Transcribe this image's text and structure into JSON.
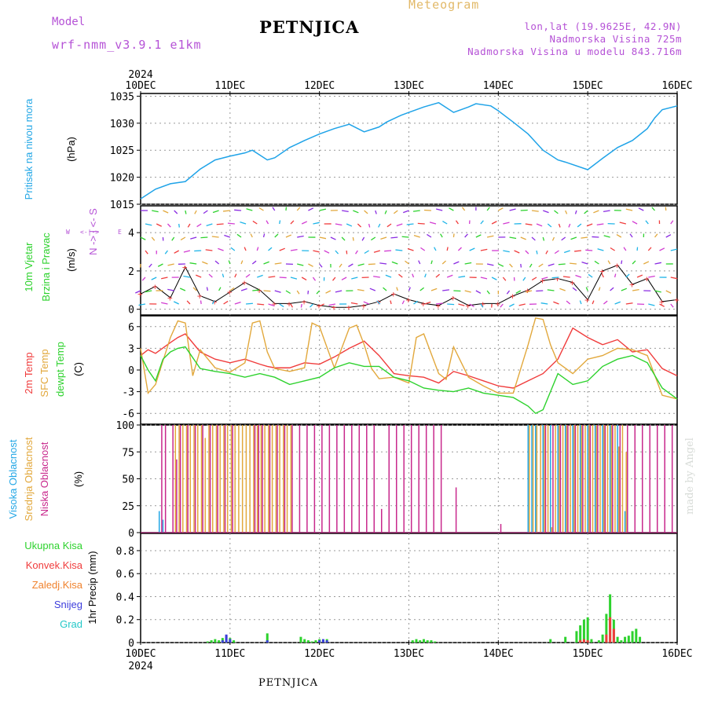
{
  "header": {
    "model_label": "Model",
    "model_name": "wrf-nmm_v3.9.1  e1km",
    "station": "PETNJICA",
    "product": "Meteogram",
    "coords": "lon,lat (19.9625E, 42.9N)",
    "altitude": "Nadmorska Visina 725m",
    "model_altitude": "Nadmorska Visina u modelu 843.716m"
  },
  "footer_station": "PETNJICA",
  "credit": "made by Angel",
  "year_label": "2024",
  "x_ticks": [
    "10DEC",
    "11DEC",
    "12DEC",
    "13DEC",
    "14DEC",
    "15DEC",
    "16DEC"
  ],
  "panels": {
    "pressure": {
      "title": "Pritisak na nivou mora",
      "unit": "(hPa)",
      "colors": {
        "title": "#23a7e6",
        "line": "#1fa3e8"
      },
      "ticks": [
        "1015",
        "1020",
        "1025",
        "1030",
        "1035"
      ]
    },
    "wind": {
      "title": "10m Vjetar",
      "subtitle": "Brzina i Pravac",
      "unit": "(m/s)",
      "compass": [
        "W",
        "<-|->",
        "E",
        "N",
        "->",
        "<-",
        "S"
      ],
      "colors": {
        "title": "#2dd22d",
        "compass": "#b552d6"
      },
      "ticks": [
        "0",
        "2",
        "4"
      ]
    },
    "temperature": {
      "labels": [
        "2m Temp",
        "SFC Temp",
        "dewpt Temp"
      ],
      "unit": "(C)",
      "colors": [
        "#f03c3c",
        "#e2a83c",
        "#2dd22d"
      ],
      "ticks": [
        "-6",
        "-3",
        "0",
        "3",
        "6"
      ]
    },
    "clouds": {
      "labels": [
        "Visoka Oblacnost",
        "Srednja Oblacnost",
        "Niska Oblacnost"
      ],
      "unit": "(%)",
      "colors": [
        "#23a7e6",
        "#e2a83c",
        "#c8288c"
      ],
      "ticks": [
        "0",
        "25",
        "50",
        "75",
        "100"
      ]
    },
    "precip": {
      "labels": [
        "Ukupna Kisa",
        "Konvek.Kisa",
        "Zaledj.Kisa",
        "Snijeg",
        "Grad"
      ],
      "unit": "1hr Precip (mm)",
      "colors": [
        "#2dd22d",
        "#f03c3c",
        "#f0822d",
        "#3c3cdc",
        "#23c8c8"
      ],
      "ticks": [
        "0",
        "0.2",
        "0.4",
        "0.6",
        "0.8"
      ]
    }
  },
  "chart_data": [
    {
      "type": "line",
      "title": "",
      "xlabel": "",
      "ylabel": "(hPa)",
      "ylim": [
        1015,
        1035.5
      ],
      "xlim": [
        0,
        144
      ],
      "series": [
        {
          "name": "Pritisak na nivou mora",
          "x": [
            0,
            4,
            8,
            12,
            16,
            20,
            24,
            28,
            30,
            34,
            36,
            40,
            44,
            48,
            52,
            56,
            60,
            64,
            66,
            70,
            72,
            76,
            80,
            84,
            88,
            90,
            94,
            96,
            100,
            104,
            108,
            112,
            114,
            120,
            124,
            128,
            132,
            136,
            138,
            140,
            144
          ],
          "y": [
            1016,
            1017.8,
            1018.8,
            1019.2,
            1021.5,
            1023.2,
            1023.9,
            1024.5,
            1025.0,
            1023.2,
            1023.6,
            1025.5,
            1026.8,
            1028.0,
            1029.0,
            1029.8,
            1028.4,
            1029.3,
            1030.2,
            1031.5,
            1032.0,
            1033.0,
            1033.8,
            1032.0,
            1033.0,
            1033.6,
            1033.2,
            1032.3,
            1030.2,
            1028.0,
            1025.0,
            1023.2,
            1022.8,
            1021.4,
            1023.5,
            1025.5,
            1026.8,
            1029.0,
            1031.0,
            1032.5,
            1033.2
          ]
        }
      ]
    },
    {
      "type": "scatter",
      "title": "",
      "xlabel": "",
      "ylabel": "(m/s)",
      "ylim": [
        -0.3,
        5.4
      ],
      "xlim": [
        0,
        144
      ],
      "series": [
        {
          "name": "Brzina",
          "x": [
            0,
            4,
            8,
            12,
            16,
            20,
            24,
            28,
            32,
            36,
            40,
            44,
            48,
            52,
            56,
            60,
            64,
            68,
            72,
            76,
            80,
            84,
            88,
            92,
            96,
            100,
            104,
            108,
            112,
            116,
            120,
            124,
            128,
            132,
            136,
            140,
            144
          ],
          "y": [
            0.8,
            1.2,
            0.6,
            2.2,
            0.7,
            0.4,
            0.9,
            1.4,
            1.0,
            0.3,
            0.3,
            0.4,
            0.2,
            0.1,
            0.1,
            0.2,
            0.4,
            0.8,
            0.5,
            0.3,
            0.2,
            0.6,
            0.2,
            0.3,
            0.3,
            0.7,
            1.0,
            1.5,
            1.6,
            1.4,
            0.5,
            2.0,
            2.3,
            1.3,
            1.6,
            0.4,
            0.5
          ]
        }
      ]
    },
    {
      "type": "line",
      "title": "",
      "xlabel": "",
      "ylabel": "(C)",
      "ylim": [
        -7.5,
        7.5
      ],
      "xlim": [
        0,
        144
      ],
      "series": [
        {
          "name": "2m Temp",
          "x": [
            0,
            2,
            4,
            8,
            10,
            12,
            16,
            20,
            24,
            28,
            32,
            34,
            36,
            40,
            44,
            48,
            52,
            56,
            60,
            64,
            68,
            72,
            76,
            80,
            84,
            88,
            92,
            96,
            100,
            104,
            108,
            112,
            116,
            120,
            124,
            128,
            132,
            136,
            140,
            144
          ],
          "y": [
            2.0,
            2.8,
            2.3,
            3.8,
            4.5,
            5.0,
            2.5,
            1.5,
            1.0,
            1.5,
            0.8,
            0.5,
            0.3,
            0.3,
            1.0,
            0.8,
            1.8,
            3.0,
            4.0,
            2.0,
            -0.5,
            -0.8,
            -1.0,
            -1.8,
            -0.2,
            -0.8,
            -1.5,
            -2.2,
            -2.5,
            -1.5,
            -0.5,
            1.5,
            5.8,
            4.5,
            3.5,
            4.2,
            2.5,
            2.8,
            0.2,
            -0.8
          ]
        },
        {
          "name": "SFC Temp",
          "x": [
            0,
            2,
            4,
            8,
            10,
            12,
            14,
            16,
            20,
            24,
            28,
            30,
            32,
            34,
            36,
            40,
            44,
            46,
            48,
            52,
            56,
            58,
            60,
            62,
            64,
            68,
            72,
            74,
            76,
            80,
            82,
            84,
            88,
            92,
            96,
            100,
            104,
            106,
            108,
            110,
            112,
            116,
            120,
            124,
            128,
            132,
            136,
            140,
            144
          ],
          "y": [
            3.0,
            -3.2,
            -2.0,
            4.5,
            6.8,
            6.5,
            -0.8,
            2.8,
            0.3,
            -0.3,
            1.0,
            6.5,
            6.8,
            2.5,
            0.2,
            -0.2,
            0.3,
            6.5,
            6.0,
            0.3,
            5.8,
            6.2,
            3.5,
            0.2,
            -1.2,
            -1.0,
            -1.8,
            4.5,
            5.0,
            -0.5,
            -1.3,
            3.2,
            -1.0,
            -2.2,
            -3.2,
            -3.2,
            3.5,
            7.2,
            7.0,
            3.5,
            1.0,
            -0.5,
            1.5,
            2.0,
            3.0,
            2.8,
            2.0,
            -3.5,
            -4.0
          ]
        },
        {
          "name": "dewpt Temp",
          "x": [
            0,
            2,
            4,
            6,
            8,
            10,
            12,
            16,
            20,
            24,
            28,
            32,
            36,
            40,
            44,
            48,
            52,
            56,
            60,
            64,
            68,
            72,
            76,
            80,
            84,
            88,
            92,
            96,
            100,
            104,
            106,
            108,
            112,
            116,
            120,
            124,
            128,
            132,
            136,
            140,
            144
          ],
          "y": [
            2.0,
            0.0,
            -1.5,
            1.5,
            2.5,
            3.0,
            3.2,
            0.2,
            -0.2,
            -0.5,
            -1.0,
            -0.5,
            -1.0,
            -2.0,
            -1.5,
            -1.0,
            0.3,
            1.0,
            0.5,
            0.5,
            -1.0,
            -1.5,
            -2.5,
            -2.8,
            -3.0,
            -2.5,
            -3.2,
            -3.5,
            -3.8,
            -5.0,
            -6.0,
            -5.5,
            -0.5,
            -2.0,
            -1.5,
            0.5,
            1.5,
            2.0,
            1.0,
            -2.5,
            -4.0
          ]
        }
      ]
    },
    {
      "type": "bar",
      "title": "",
      "xlabel": "",
      "ylabel": "(%)",
      "ylim": [
        0,
        100
      ],
      "xlim": [
        0,
        144
      ],
      "series": [
        {
          "name": "Visoka Oblacnost",
          "x": [
            5,
            6,
            104,
            105,
            106,
            108,
            110,
            112,
            114,
            116,
            118,
            120,
            122,
            124,
            126,
            128,
            130
          ],
          "values": [
            20,
            12,
            100,
            100,
            100,
            100,
            100,
            100,
            100,
            100,
            100,
            100,
            100,
            100,
            100,
            100,
            20
          ]
        },
        {
          "name": "Srednja Oblacnost",
          "x": [
            9,
            10,
            11,
            12,
            13,
            14,
            15,
            16,
            17,
            18,
            19,
            20,
            21,
            22,
            23,
            24,
            25,
            26,
            27,
            28,
            29,
            30,
            31,
            32,
            33,
            34,
            35,
            36,
            37,
            38,
            39,
            40,
            104,
            105,
            106,
            107,
            108,
            109,
            110,
            111,
            112,
            113,
            114,
            115,
            116,
            117,
            118,
            119,
            120,
            121,
            122,
            123,
            124,
            125,
            126,
            127,
            128,
            129,
            130
          ],
          "values": [
            100,
            100,
            100,
            100,
            100,
            100,
            100,
            100,
            88,
            100,
            100,
            100,
            100,
            100,
            100,
            100,
            100,
            100,
            100,
            100,
            100,
            100,
            100,
            100,
            100,
            100,
            100,
            100,
            100,
            100,
            100,
            100,
            100,
            100,
            100,
            100,
            100,
            100,
            5,
            100,
            100,
            100,
            100,
            100,
            100,
            100,
            100,
            100,
            100,
            100,
            100,
            100,
            100,
            100,
            100,
            100,
            80,
            100,
            75
          ]
        },
        {
          "name": "Niska Oblacnost",
          "x": [
            5,
            6,
            8,
            9,
            10,
            12,
            14,
            16,
            18,
            20,
            22,
            24,
            30,
            31,
            32,
            34,
            36,
            38,
            40,
            42,
            44,
            46,
            48,
            50,
            52,
            54,
            56,
            58,
            60,
            62,
            64,
            66,
            68,
            70,
            72,
            74,
            76,
            78,
            80,
            84,
            96,
            108,
            110,
            112,
            114,
            116,
            118,
            120,
            122,
            124,
            126,
            128,
            130,
            132,
            134,
            136,
            138,
            140,
            142
          ],
          "values": [
            100,
            100,
            100,
            68,
            100,
            100,
            100,
            100,
            100,
            100,
            100,
            100,
            100,
            100,
            100,
            100,
            100,
            100,
            100,
            100,
            100,
            100,
            100,
            100,
            100,
            100,
            100,
            100,
            100,
            100,
            22,
            100,
            100,
            100,
            100,
            100,
            100,
            100,
            100,
            42,
            8,
            100,
            100,
            100,
            100,
            100,
            100,
            100,
            100,
            100,
            100,
            100,
            100,
            100,
            100,
            100,
            100,
            100,
            100
          ]
        }
      ]
    },
    {
      "type": "bar",
      "title": "",
      "xlabel": "",
      "ylabel": "1hr Precip (mm)",
      "ylim": [
        0,
        0.95
      ],
      "xlim": [
        0,
        144
      ],
      "series": [
        {
          "name": "Ukupna Kisa",
          "x": [
            18,
            19,
            20,
            21,
            22,
            23,
            24,
            25,
            34,
            43,
            44,
            45,
            46,
            47,
            48,
            49,
            50,
            73,
            74,
            75,
            76,
            77,
            78,
            79,
            110,
            114,
            117,
            118,
            119,
            120,
            121,
            123,
            124,
            125,
            126,
            127,
            128,
            129,
            130,
            131,
            132,
            133,
            134
          ],
          "values": [
            0.01,
            0.02,
            0.03,
            0.02,
            0.04,
            0.06,
            0.04,
            0.02,
            0.08,
            0.05,
            0.03,
            0.02,
            0.01,
            0.02,
            0.03,
            0.02,
            0.03,
            0.02,
            0.03,
            0.02,
            0.03,
            0.02,
            0.02,
            0.01,
            0.03,
            0.05,
            0.1,
            0.15,
            0.2,
            0.22,
            0.03,
            0.02,
            0.07,
            0.25,
            0.42,
            0.2,
            0.05,
            0.02,
            0.05,
            0.06,
            0.1,
            0.12,
            0.05
          ]
        },
        {
          "name": "Konvek.Kisa",
          "x": [
            118,
            119,
            120,
            125,
            126,
            127
          ],
          "values": [
            0.02,
            0.03,
            0.02,
            0.07,
            0.22,
            0.12
          ]
        },
        {
          "name": "Snijeg",
          "x": [
            22,
            23,
            24,
            34,
            48,
            49,
            50
          ],
          "values": [
            0.02,
            0.07,
            0.03,
            0.02,
            0.02,
            0.03,
            0.02
          ]
        }
      ]
    }
  ]
}
